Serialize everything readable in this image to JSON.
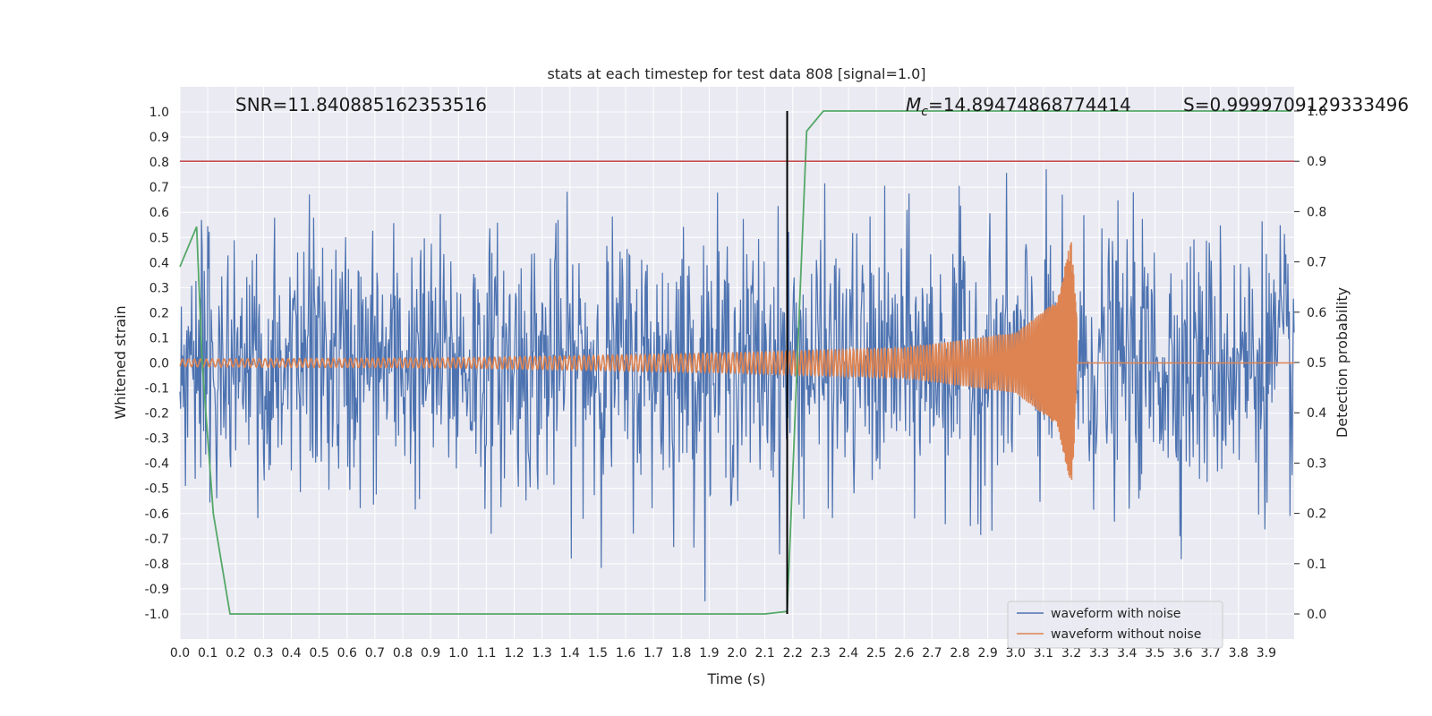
{
  "chart_data": {
    "type": "line",
    "title": "stats at each timestep for test data 808 [signal=1.0]",
    "xlabel": "Time (s)",
    "ylabel": "Whitened strain",
    "y2label": "Detection probability",
    "xlim": [
      0.0,
      4.0
    ],
    "ylim": [
      -1.1,
      1.1
    ],
    "y2lim": [
      -0.05,
      1.0
    ],
    "grid": true,
    "legend_position": "lower-right",
    "x_ticks": [
      "0.0",
      "0.1",
      "0.2",
      "0.3",
      "0.4",
      "0.5",
      "0.6",
      "0.7",
      "0.8",
      "0.9",
      "1.0",
      "1.1",
      "1.2",
      "1.3",
      "1.4",
      "1.5",
      "1.6",
      "1.7",
      "1.8",
      "1.9",
      "2.0",
      "2.1",
      "2.2",
      "2.3",
      "2.4",
      "2.5",
      "2.6",
      "2.7",
      "2.8",
      "2.9",
      "3.0",
      "3.1",
      "3.2",
      "3.3",
      "3.4",
      "3.5",
      "3.6",
      "3.7",
      "3.8",
      "3.9"
    ],
    "y_ticks": [
      "1.0",
      "0.9",
      "0.8",
      "0.7",
      "0.6",
      "0.5",
      "0.4",
      "0.3",
      "0.2",
      "0.1",
      "0.0",
      "-0.1",
      "-0.2",
      "-0.3",
      "-0.4",
      "-0.5",
      "-0.6",
      "-0.7",
      "-0.8",
      "-0.9",
      "-1.0"
    ],
    "y2_ticks": [
      "1.0",
      "0.9",
      "0.8",
      "0.7",
      "0.6",
      "0.5",
      "0.4",
      "0.3",
      "0.2",
      "0.1",
      "0.0"
    ],
    "annotations": {
      "snr": "SNR=11.840885162353516",
      "mc_symbol": "M",
      "mc_subscript": "c",
      "mc_value": "=14.89474868774414",
      "s_value": "S=0.9999709129333496"
    },
    "threshold_line": {
      "y2": 0.9,
      "color": "#c44e52"
    },
    "vertical_marker": {
      "x": 2.18,
      "color": "#000000"
    },
    "series": [
      {
        "name": "waveform with noise",
        "color": "#4c72b0",
        "description_stats": {
          "typical_amplitude": 0.35,
          "peak": 1.0,
          "trough": -0.97
        }
      },
      {
        "name": "waveform without noise",
        "color": "#dd8452",
        "envelope": [
          {
            "x": 0.0,
            "a": 0.015
          },
          {
            "x": 1.0,
            "a": 0.02
          },
          {
            "x": 2.0,
            "a": 0.04
          },
          {
            "x": 2.6,
            "a": 0.06
          },
          {
            "x": 3.0,
            "a": 0.12
          },
          {
            "x": 3.15,
            "a": 0.25
          },
          {
            "x": 3.2,
            "a": 0.5
          },
          {
            "x": 3.23,
            "a": 0.0
          }
        ]
      },
      {
        "axis": "y2",
        "color": "#55a868",
        "x": [
          0.0,
          0.06,
          0.08,
          0.12,
          0.18,
          0.2,
          2.1,
          2.18,
          2.25,
          2.31,
          3.99
        ],
        "y": [
          0.69,
          0.77,
          0.5,
          0.2,
          0.0,
          0.0,
          0.0,
          0.005,
          0.96,
          1.0,
          1.0
        ]
      }
    ]
  }
}
